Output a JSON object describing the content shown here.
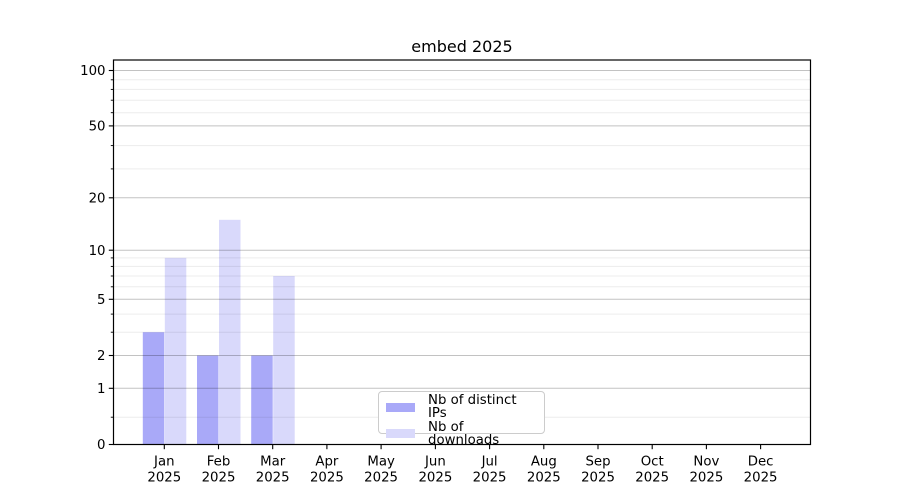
{
  "chart_data": {
    "type": "bar",
    "title": "embed 2025",
    "xlabel": "",
    "ylabel": "",
    "yscale": "log1p",
    "ylim": [
      0,
      100
    ],
    "grid": true,
    "legend_position": "lower-center-inside",
    "categories": [
      "Jan",
      "Feb",
      "Mar",
      "Apr",
      "May",
      "Jun",
      "Jul",
      "Aug",
      "Sep",
      "Oct",
      "Nov",
      "Dec"
    ],
    "x_year_label": "2025",
    "ytick_values": [
      0,
      1,
      2,
      5,
      10,
      20,
      50,
      100
    ],
    "minor_grid_values": [
      0.4,
      3,
      4,
      6,
      7,
      8,
      9,
      29,
      39,
      59,
      69,
      79,
      89
    ],
    "series": [
      {
        "name": "Nb of distinct IPs",
        "color": "#a9a9f8",
        "values": [
          3,
          2,
          2,
          0,
          0,
          0,
          0,
          0,
          0,
          0,
          0,
          0
        ]
      },
      {
        "name": "Nb of downloads",
        "color": "#d9d9fb",
        "values": [
          9,
          15,
          7,
          0,
          0,
          0,
          0,
          0,
          0,
          0,
          0,
          0
        ]
      }
    ]
  }
}
